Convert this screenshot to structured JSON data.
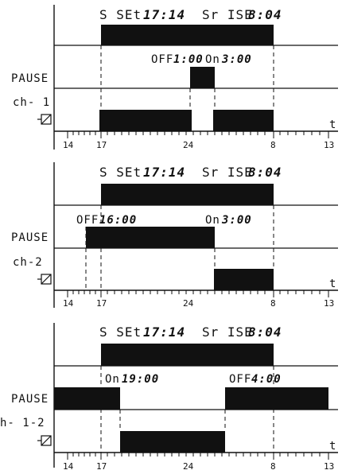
{
  "colors": {
    "ink": "#111111",
    "bar": "#111111",
    "background": "#ffffff"
  },
  "icons": {
    "relay": "relay-coil-icon"
  },
  "panels": [
    {
      "sunset_label": "S SEt",
      "sunset_time": "17:14",
      "sunrise_label": "Sr ISE",
      "sunrise_time": "8:04",
      "left_marker_label": "OFF",
      "left_marker_time": "1:00",
      "right_marker_label": "On",
      "right_marker_time": "3:00",
      "pause_label": "PAUSE",
      "channel_label": "ch- 1",
      "time_axis_label": "t",
      "tick_labels": [
        "14",
        "17",
        "24",
        "8",
        "13"
      ]
    },
    {
      "sunset_label": "S SEt",
      "sunset_time": "17:14",
      "sunrise_label": "Sr ISE",
      "sunrise_time": "8:04",
      "left_marker_label": "OFF",
      "left_marker_time": "16:00",
      "right_marker_label": "On",
      "right_marker_time": "3:00",
      "pause_label": "PAUSE",
      "channel_label": "ch-2",
      "time_axis_label": "t",
      "tick_labels": [
        "14",
        "17",
        "24",
        "8",
        "13"
      ]
    },
    {
      "sunset_label": "S SEt",
      "sunset_time": "17:14",
      "sunrise_label": "Sr ISE",
      "sunrise_time": "8:04",
      "left_marker_label": "On",
      "left_marker_time": "19:00",
      "right_marker_label": "OFF",
      "right_marker_time": "4:00",
      "pause_label": "PAUSE",
      "channel_label": "h- 1-2",
      "time_axis_label": "t",
      "tick_labels": [
        "14",
        "17",
        "24",
        "8",
        "13"
      ]
    }
  ]
}
